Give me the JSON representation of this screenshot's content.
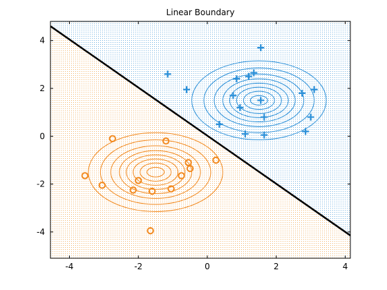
{
  "chart_data": {
    "type": "scatter",
    "title": "Linear Boundary",
    "xlabel": "",
    "ylabel": "",
    "xlim": [
      -4.55,
      4.15
    ],
    "ylim": [
      -5.1,
      4.8
    ],
    "x_ticks": [
      -4,
      -2,
      0,
      2,
      4
    ],
    "y_ticks": [
      -4,
      -2,
      0,
      2,
      4
    ],
    "x_tick_labels": [
      "-4",
      "-2",
      "0",
      "2",
      "4"
    ],
    "y_tick_labels": [
      "-4",
      "-2",
      "0",
      "2",
      "4"
    ],
    "grid": false,
    "boundary": {
      "points": [
        [
          -4.55,
          4.6
        ],
        [
          4.15,
          -4.15
        ]
      ],
      "color": "#000000"
    },
    "regions": [
      {
        "name": "",
        "side": "above",
        "color": "#3b99d8"
      },
      {
        "name": "",
        "side": "below",
        "color": "#f2a33a"
      }
    ],
    "series": [
      {
        "marker": "plus",
        "color": "#2a8fd8",
        "points": [
          [
            1.55,
            3.7
          ],
          [
            -1.15,
            2.6
          ],
          [
            -0.6,
            1.95
          ],
          [
            0.85,
            2.4
          ],
          [
            1.2,
            2.5
          ],
          [
            1.35,
            2.65
          ],
          [
            0.75,
            1.7
          ],
          [
            0.95,
            1.2
          ],
          [
            1.55,
            1.5
          ],
          [
            1.65,
            0.8
          ],
          [
            2.75,
            1.8
          ],
          [
            3.1,
            1.95
          ],
          [
            3.0,
            0.8
          ],
          [
            0.35,
            0.5
          ],
          [
            1.1,
            0.1
          ],
          [
            1.65,
            0.05
          ],
          [
            2.85,
            0.2
          ]
        ],
        "contour_center": [
          1.5,
          1.5
        ],
        "contour_radii": [
          [
            0.25,
            0.2
          ],
          [
            0.45,
            0.38
          ],
          [
            0.65,
            0.55
          ],
          [
            0.85,
            0.72
          ],
          [
            1.05,
            0.9
          ],
          [
            1.3,
            1.1
          ],
          [
            1.6,
            1.35
          ],
          [
            1.95,
            1.65
          ]
        ]
      },
      {
        "marker": "circle",
        "color": "#f2891e",
        "points": [
          [
            -2.75,
            -0.1
          ],
          [
            -1.2,
            -0.2
          ],
          [
            0.25,
            -1.0
          ],
          [
            -0.55,
            -1.1
          ],
          [
            -0.5,
            -1.35
          ],
          [
            -3.55,
            -1.65
          ],
          [
            -2.0,
            -1.85
          ],
          [
            -0.75,
            -1.65
          ],
          [
            -3.05,
            -2.05
          ],
          [
            -2.15,
            -2.25
          ],
          [
            -1.6,
            -2.3
          ],
          [
            -1.05,
            -2.2
          ],
          [
            -1.65,
            -3.95
          ]
        ],
        "contour_center": [
          -1.5,
          -1.5
        ],
        "contour_radii": [
          [
            0.25,
            0.2
          ],
          [
            0.45,
            0.38
          ],
          [
            0.65,
            0.55
          ],
          [
            0.85,
            0.72
          ],
          [
            1.05,
            0.9
          ],
          [
            1.3,
            1.1
          ],
          [
            1.6,
            1.35
          ],
          [
            1.95,
            1.65
          ]
        ]
      }
    ]
  }
}
